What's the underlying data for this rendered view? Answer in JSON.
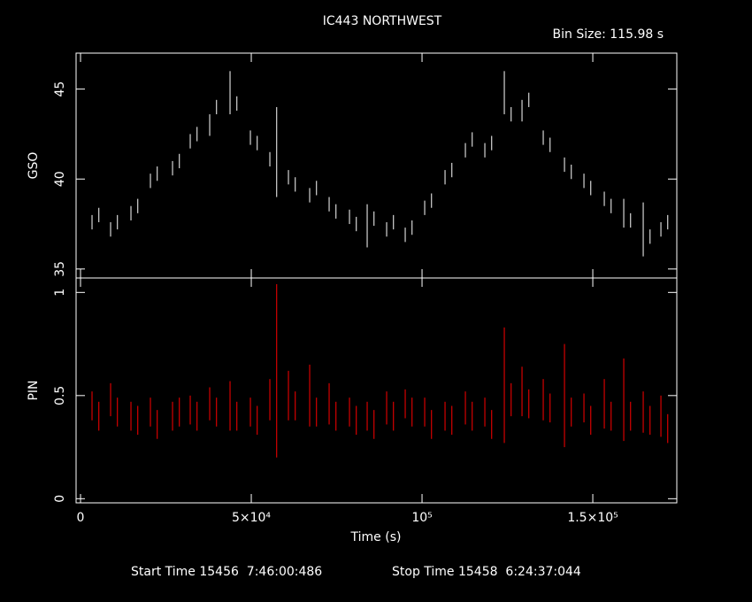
{
  "title": "IC443 NORTHWEST",
  "bin_size": "Bin Size: 115.98 s",
  "xlabel": "Time (s)",
  "start_time": "Start Time 15456  7:46:00:486",
  "stop_time": "Stop Time 15458  6:24:37:044",
  "chart_data": [
    {
      "type": "scatter",
      "ylabel": "GSO",
      "color": "#ffffff",
      "xlim": [
        -1300,
        174600
      ],
      "xticks": [
        0,
        {
          "value": 50000,
          "label": "5×10⁴"
        },
        {
          "value": 100000,
          "label": "10⁵"
        },
        {
          "value": 150000,
          "label": "1.5×10⁵"
        }
      ],
      "ylim": [
        34.5,
        47
      ],
      "yticks": [
        35,
        40,
        45
      ],
      "x": [
        3368,
        5368,
        8808,
        10808,
        14767,
        16767,
        20466,
        22466,
        26943,
        28943,
        32124,
        34124,
        37824,
        39824,
        43782,
        45782,
        49741,
        51741,
        55440,
        57440,
        60881,
        62881,
        67098,
        69098,
        72798,
        74798,
        78756,
        80756,
        83938,
        85938,
        89637,
        91637,
        95078,
        97078,
        100777,
        102777,
        106736,
        108736,
        112694,
        114694,
        118394,
        120394,
        124093,
        126093,
        129275,
        131275,
        135492,
        137492,
        141710,
        143710,
        147410,
        149410,
        153368,
        155368,
        159067,
        161067,
        164767,
        166767,
        169948,
        171948
      ],
      "values": [
        37.6,
        38.0,
        37.2,
        37.6,
        38.1,
        38.5,
        39.9,
        40.3,
        40.6,
        41.0,
        42.1,
        42.5,
        43.0,
        44.0,
        44.8,
        44.2,
        42.3,
        42.0,
        41.1,
        41.5,
        40.1,
        39.7,
        39.1,
        39.5,
        38.6,
        38.2,
        37.9,
        37.5,
        37.4,
        37.8,
        37.2,
        37.6,
        36.9,
        37.3,
        38.4,
        38.8,
        40.1,
        40.5,
        41.6,
        42.2,
        41.6,
        42.0,
        44.8,
        43.6,
        43.8,
        44.4,
        42.3,
        41.9,
        40.8,
        40.4,
        39.9,
        39.5,
        38.9,
        38.5,
        38.1,
        37.7,
        37.2,
        36.8,
        37.2,
        37.6
      ],
      "errors": [
        0.4,
        0.4,
        0.4,
        0.4,
        0.4,
        0.4,
        0.4,
        0.4,
        0.4,
        0.4,
        0.4,
        0.4,
        0.6,
        0.4,
        1.2,
        0.4,
        0.4,
        0.4,
        0.4,
        2.5,
        0.4,
        0.4,
        0.4,
        0.4,
        0.4,
        0.4,
        0.4,
        0.4,
        1.2,
        0.4,
        0.4,
        0.4,
        0.4,
        0.4,
        0.4,
        0.4,
        0.4,
        0.4,
        0.4,
        0.4,
        0.4,
        0.4,
        1.2,
        0.4,
        0.6,
        0.4,
        0.4,
        0.4,
        0.4,
        0.4,
        0.4,
        0.4,
        0.4,
        0.4,
        0.8,
        0.4,
        1.5,
        0.4,
        0.4,
        0.4
      ]
    },
    {
      "type": "scatter",
      "ylabel": "PIN",
      "color": "#ff0000",
      "xlim": [
        -1300,
        174600
      ],
      "xticks": [
        0,
        {
          "value": 50000,
          "label": "5×10⁴"
        },
        {
          "value": 100000,
          "label": "10⁵"
        },
        {
          "value": 150000,
          "label": "1.5×10⁵"
        }
      ],
      "ylim": [
        -0.02,
        1.07
      ],
      "yticks": [
        0,
        0.5,
        1
      ],
      "x": [
        3368,
        5368,
        8808,
        10808,
        14767,
        16767,
        20466,
        22466,
        26943,
        28943,
        32124,
        34124,
        37824,
        39824,
        43782,
        45782,
        49741,
        51741,
        55440,
        57440,
        60881,
        62881,
        67098,
        69098,
        72798,
        74798,
        78756,
        80756,
        83938,
        85938,
        89637,
        91637,
        95078,
        97078,
        100777,
        102777,
        106736,
        108736,
        112694,
        114694,
        118394,
        120394,
        124093,
        126093,
        129275,
        131275,
        135492,
        137492,
        141710,
        143710,
        147410,
        149410,
        153368,
        155368,
        159067,
        161067,
        164767,
        166767,
        169948,
        171948
      ],
      "values": [
        0.45,
        0.4,
        0.48,
        0.42,
        0.4,
        0.38,
        0.42,
        0.36,
        0.4,
        0.42,
        0.43,
        0.4,
        0.46,
        0.42,
        0.45,
        0.4,
        0.42,
        0.38,
        0.48,
        0.62,
        0.5,
        0.45,
        0.5,
        0.42,
        0.46,
        0.4,
        0.42,
        0.38,
        0.4,
        0.36,
        0.44,
        0.4,
        0.46,
        0.42,
        0.42,
        0.36,
        0.4,
        0.38,
        0.44,
        0.4,
        0.42,
        0.36,
        0.55,
        0.48,
        0.52,
        0.46,
        0.48,
        0.44,
        0.5,
        0.42,
        0.44,
        0.38,
        0.46,
        0.4,
        0.48,
        0.4,
        0.42,
        0.38,
        0.4,
        0.34
      ],
      "errors": [
        0.07,
        0.07,
        0.08,
        0.07,
        0.07,
        0.07,
        0.07,
        0.07,
        0.07,
        0.07,
        0.07,
        0.07,
        0.08,
        0.07,
        0.12,
        0.07,
        0.07,
        0.07,
        0.1,
        0.42,
        0.12,
        0.07,
        0.15,
        0.07,
        0.1,
        0.07,
        0.07,
        0.07,
        0.07,
        0.07,
        0.08,
        0.07,
        0.07,
        0.07,
        0.07,
        0.07,
        0.07,
        0.07,
        0.08,
        0.07,
        0.07,
        0.07,
        0.28,
        0.08,
        0.12,
        0.07,
        0.1,
        0.07,
        0.25,
        0.07,
        0.07,
        0.07,
        0.12,
        0.07,
        0.2,
        0.07,
        0.1,
        0.07,
        0.1,
        0.07
      ]
    }
  ]
}
